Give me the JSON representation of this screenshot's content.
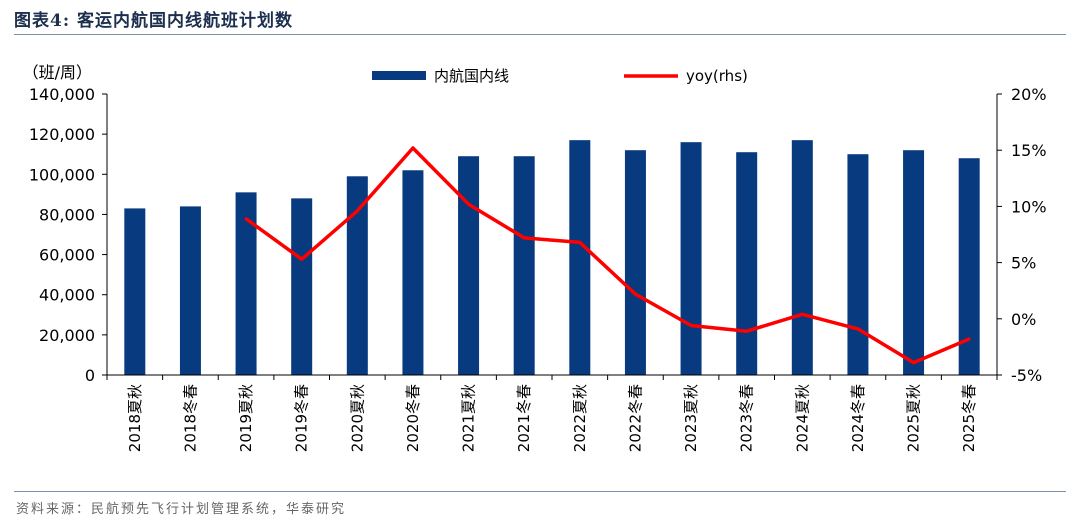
{
  "figure": {
    "title": "图表4:   客运内航国内线航班计划数",
    "source": "资料来源：民航预先飞行计划管理系统，华泰研究"
  },
  "chart_data": {
    "type": "bar",
    "categories": [
      "2018夏秋",
      "2018冬春",
      "2019夏秋",
      "2019冬春",
      "2020夏秋",
      "2020冬春",
      "2021夏秋",
      "2021冬春",
      "2022夏秋",
      "2022冬春",
      "2023夏秋",
      "2023冬春",
      "2024夏秋",
      "2024冬春",
      "2025夏秋",
      "2025冬春"
    ],
    "series": [
      {
        "name": "内航国内线",
        "kind": "bar",
        "axis": "left",
        "color": "#073a7e",
        "values": [
          83000,
          84000,
          91000,
          88000,
          99000,
          102000,
          109000,
          109000,
          117000,
          112000,
          116000,
          111000,
          117000,
          110000,
          112000,
          108000
        ]
      },
      {
        "name": "yoy(rhs)",
        "kind": "line",
        "axis": "right",
        "color": "#ff0000",
        "values": [
          null,
          null,
          8.9,
          5.3,
          9.6,
          15.2,
          10.2,
          7.2,
          6.8,
          2.2,
          -0.6,
          -1.1,
          0.4,
          -0.9,
          -3.9,
          -1.8
        ]
      }
    ],
    "y_unit_label": "（班/周）",
    "ylim": [
      0,
      140000
    ],
    "yticks": [
      0,
      20000,
      40000,
      60000,
      80000,
      100000,
      120000,
      140000
    ],
    "y2lim": [
      -5,
      20
    ],
    "y2ticks": [
      -5,
      0,
      5,
      10,
      15,
      20
    ],
    "y2_format": "percent",
    "legend_position": "top",
    "grid": false
  }
}
